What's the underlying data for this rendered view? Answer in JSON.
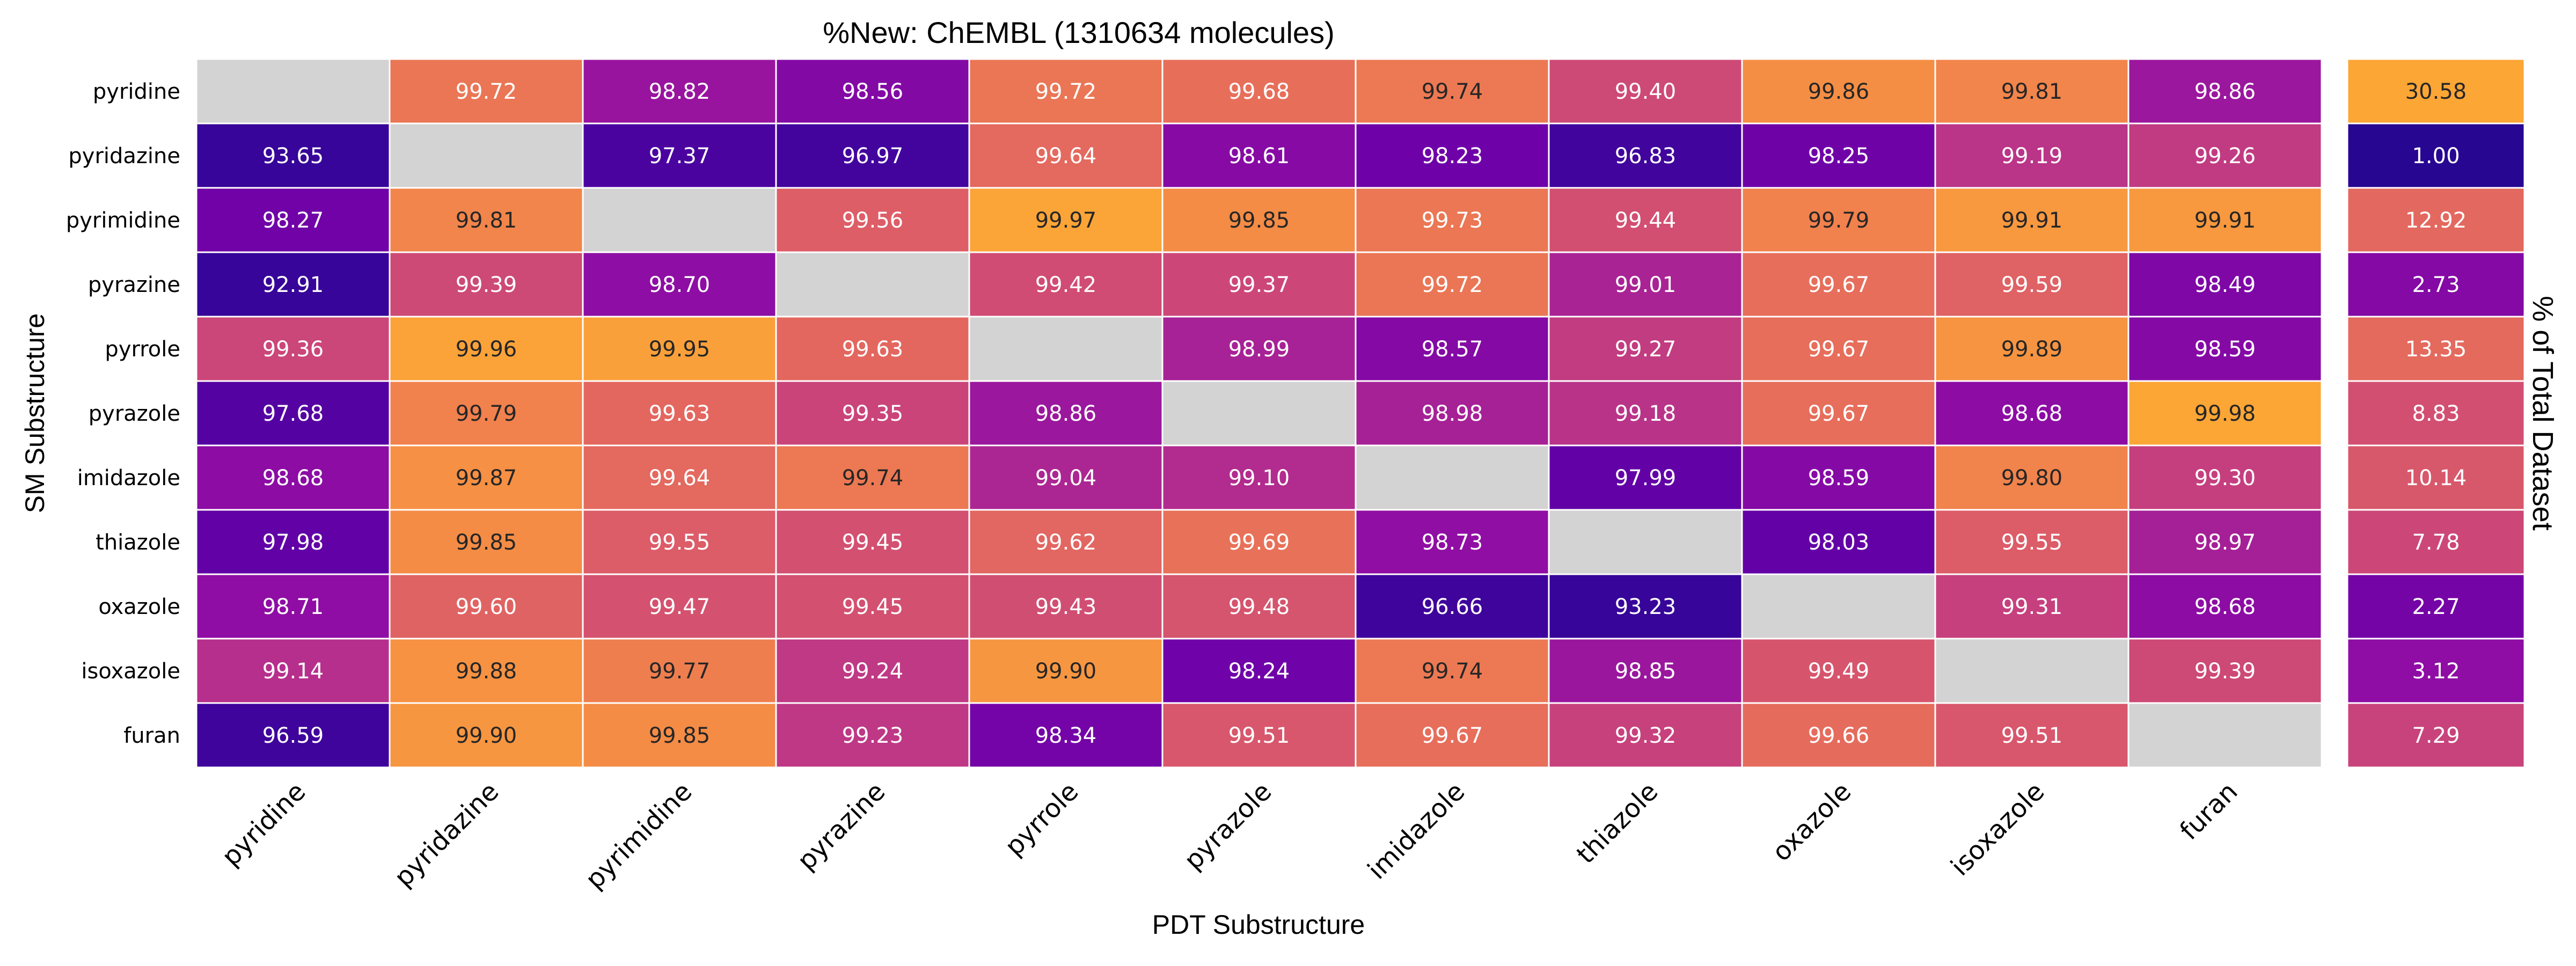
{
  "chart_data": [
    {
      "type": "heatmap",
      "title": "%New: ChEMBL (1310634 molecules)",
      "xlabel": "PDT Substructure",
      "ylabel": "SM Substructure",
      "colormap": "plasma",
      "value_format": "2 decimals",
      "missing_color": "#d3d3d3",
      "grid_color": "#ffffff",
      "x_categories": [
        "pyridine",
        "pyridazine",
        "pyrimidine",
        "pyrazine",
        "pyrrole",
        "pyrazole",
        "imidazole",
        "thiazole",
        "oxazole",
        "isoxazole",
        "furan"
      ],
      "y_categories": [
        "pyridine",
        "pyridazine",
        "pyrimidine",
        "pyrazine",
        "pyrrole",
        "pyrazole",
        "imidazole",
        "thiazole",
        "oxazole",
        "isoxazole",
        "furan"
      ],
      "values": [
        [
          null,
          99.72,
          98.82,
          98.56,
          99.72,
          99.68,
          99.74,
          99.4,
          99.86,
          99.81,
          98.86
        ],
        [
          93.65,
          null,
          97.37,
          96.97,
          99.64,
          98.61,
          98.23,
          96.83,
          98.25,
          99.19,
          99.26
        ],
        [
          98.27,
          99.81,
          null,
          99.56,
          99.97,
          99.85,
          99.73,
          99.44,
          99.79,
          99.91,
          99.91
        ],
        [
          92.91,
          99.39,
          98.7,
          null,
          99.42,
          99.37,
          99.72,
          99.01,
          99.67,
          99.59,
          98.49
        ],
        [
          99.36,
          99.96,
          99.95,
          99.63,
          null,
          98.99,
          98.57,
          99.27,
          99.67,
          99.89,
          98.59
        ],
        [
          97.68,
          99.79,
          99.63,
          99.35,
          98.86,
          null,
          98.98,
          99.18,
          99.67,
          98.68,
          99.98
        ],
        [
          98.68,
          99.87,
          99.64,
          99.74,
          99.04,
          99.1,
          null,
          97.99,
          98.59,
          99.8,
          99.3
        ],
        [
          97.98,
          99.85,
          99.55,
          99.45,
          99.62,
          99.69,
          98.73,
          null,
          98.03,
          99.55,
          98.97
        ],
        [
          98.71,
          99.6,
          99.47,
          99.45,
          99.43,
          99.48,
          96.66,
          93.23,
          null,
          99.31,
          98.68
        ],
        [
          99.14,
          99.88,
          99.77,
          99.24,
          99.9,
          98.24,
          99.74,
          98.85,
          99.49,
          null,
          99.39
        ],
        [
          96.59,
          99.9,
          99.85,
          99.23,
          98.34,
          99.51,
          99.67,
          99.32,
          99.66,
          99.51,
          null
        ]
      ]
    },
    {
      "type": "heatmap",
      "title": "",
      "ylabel": "% of Total Dataset",
      "ylabel_side": "right",
      "colormap": "plasma",
      "y_categories": [
        "pyridine",
        "pyridazine",
        "pyrimidine",
        "pyrazine",
        "pyrrole",
        "pyrazole",
        "imidazole",
        "thiazole",
        "oxazole",
        "isoxazole",
        "furan"
      ],
      "values": [
        30.58,
        1.0,
        12.92,
        2.73,
        13.35,
        8.83,
        10.14,
        7.78,
        2.27,
        3.12,
        7.29
      ]
    }
  ]
}
